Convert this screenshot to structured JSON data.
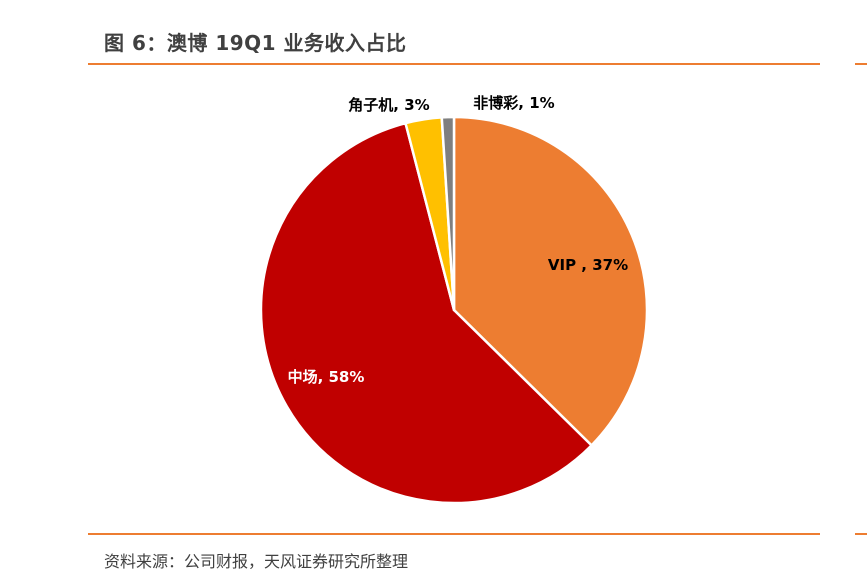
{
  "title": "图 6：澳博 19Q1 业务收入占比",
  "source": "资料来源：公司财报，天风证券研究所整理",
  "colors": {
    "accent_rule": "#ED7D31",
    "title_text": "#404040"
  },
  "chart_data": {
    "type": "pie",
    "start_angle_deg": 0,
    "direction": "clockwise",
    "slices": [
      {
        "category": "VIP",
        "label": "VIP , 37%",
        "value": 37,
        "color": "#ED7D31",
        "label_color": "#000000"
      },
      {
        "category": "中场",
        "label": "中场, 58%",
        "value": 58,
        "color": "#C00000",
        "label_color": "#FFFFFF"
      },
      {
        "category": "角子机",
        "label": "角子机, 3%",
        "value": 3,
        "color": "#FFC000",
        "label_color": "#000000"
      },
      {
        "category": "非博彩",
        "label": "非博彩, 1%",
        "value": 1,
        "color": "#7F7F7F",
        "label_color": "#000000"
      }
    ]
  }
}
